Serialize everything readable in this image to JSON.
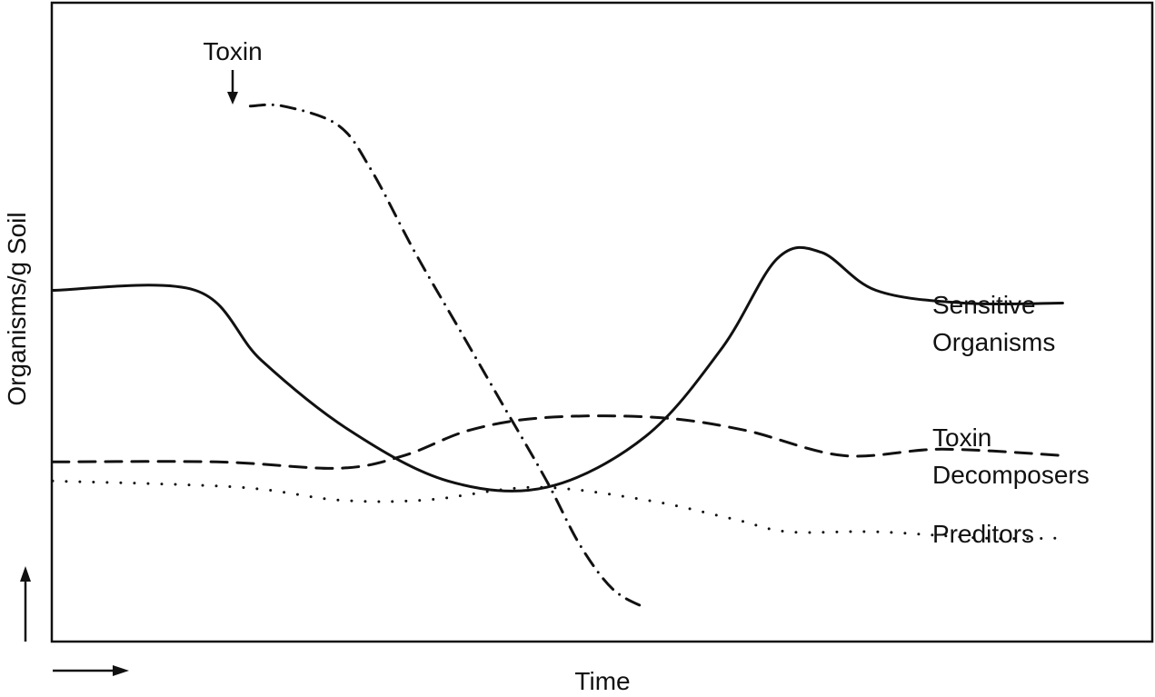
{
  "chart_data": {
    "type": "line",
    "title": "",
    "xlabel": "Time",
    "ylabel": "Organisms/g Soil",
    "xlim": [
      0,
      100
    ],
    "ylim": [
      0,
      100
    ],
    "grid": false,
    "axis_ticks": false,
    "legend_placement": "right",
    "annotation": {
      "text": "Toxin",
      "x": 21,
      "y": 84
    },
    "series": [
      {
        "name": "Toxin",
        "style": "dash-dot",
        "label_shown": false,
        "points": [
          [
            18,
            84
          ],
          [
            21,
            84
          ],
          [
            26,
            81
          ],
          [
            29,
            74
          ],
          [
            33,
            61
          ],
          [
            37,
            49
          ],
          [
            41,
            37
          ],
          [
            45,
            25
          ],
          [
            48,
            15
          ],
          [
            51,
            8
          ],
          [
            54,
            5
          ]
        ]
      },
      {
        "name": "Sensitive Organisms",
        "style": "solid",
        "label_shown": true,
        "points": [
          [
            0,
            55
          ],
          [
            13,
            55
          ],
          [
            19,
            44
          ],
          [
            27,
            33
          ],
          [
            36,
            25
          ],
          [
            45,
            24
          ],
          [
            54,
            32
          ],
          [
            61,
            46
          ],
          [
            66,
            60
          ],
          [
            70,
            61
          ],
          [
            75,
            55
          ],
          [
            83,
            53
          ],
          [
            92,
            53
          ]
        ]
      },
      {
        "name": "Toxin Decomposers",
        "style": "dashed",
        "label_shown": true,
        "points": [
          [
            0,
            28
          ],
          [
            15,
            28
          ],
          [
            26,
            27
          ],
          [
            32,
            29
          ],
          [
            38,
            33
          ],
          [
            45,
            35
          ],
          [
            55,
            35
          ],
          [
            63,
            33
          ],
          [
            72,
            29
          ],
          [
            81,
            30
          ],
          [
            92,
            29
          ]
        ]
      },
      {
        "name": "Preditors",
        "style": "dotted",
        "label_shown": true,
        "points": [
          [
            0,
            25
          ],
          [
            17,
            24
          ],
          [
            26,
            22
          ],
          [
            34,
            22
          ],
          [
            44,
            24
          ],
          [
            54,
            22
          ],
          [
            62,
            19
          ],
          [
            67,
            17
          ],
          [
            75,
            17
          ],
          [
            85,
            16
          ],
          [
            92,
            16
          ]
        ]
      }
    ],
    "legend": [
      {
        "series": "Sensitive Organisms",
        "lines": [
          "Sensitive",
          "Organisms"
        ]
      },
      {
        "series": "Toxin Decomposers",
        "lines": [
          "Toxin",
          "Decomposers"
        ]
      },
      {
        "series": "Preditors",
        "lines": [
          "Preditors"
        ]
      }
    ]
  }
}
